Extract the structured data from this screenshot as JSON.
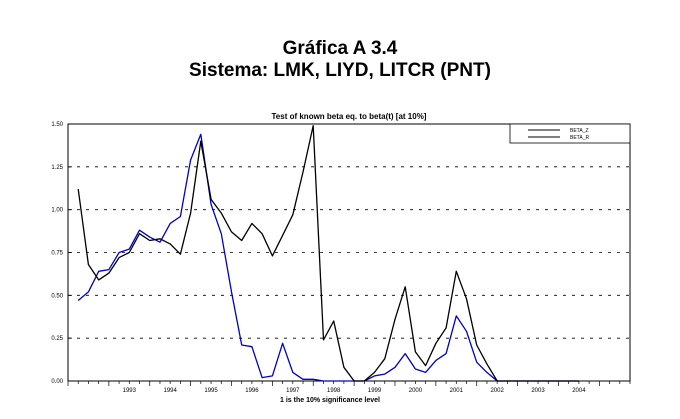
{
  "header": {
    "title": "Gráfica A 3.4",
    "subtitle": "Sistema: LMK, LIYD, LITCR (PNT)"
  },
  "chart_data": {
    "type": "line",
    "title": "Test of known beta eq. to beta(t) [at 10%]",
    "xlabel": "1 is the 10% significance level",
    "ylabel": "",
    "xlim": [
      1992.0,
      2005.75
    ],
    "ylim": [
      0,
      1.5
    ],
    "yticks": [
      "0.00",
      "0.25",
      "0.50",
      "0.75",
      "1.00",
      "1.25",
      "1.50"
    ],
    "ytick_values": [
      0,
      0.25,
      0.5,
      0.75,
      1.0,
      1.25,
      1.5
    ],
    "xticks": [
      "1993",
      "1994",
      "1995",
      "1996",
      "1997",
      "1998",
      "1999",
      "2000",
      "2001",
      "2002",
      "2003",
      "2004"
    ],
    "xtick_values": [
      1993,
      1994,
      1995,
      1996,
      1997,
      1998,
      1999,
      2000,
      2001,
      2002,
      2003,
      2004
    ],
    "grid": "dashed horizontal",
    "legend_position": "top-right",
    "colors": {
      "beta_z": "#000000",
      "beta_r": "#0000cc"
    },
    "x": [
      1992.25,
      1992.5,
      1992.75,
      1993.0,
      1993.25,
      1993.5,
      1993.75,
      1994.0,
      1994.25,
      1994.5,
      1994.75,
      1995.0,
      1995.25,
      1995.5,
      1995.75,
      1996.0,
      1996.25,
      1996.5,
      1996.75,
      1997.0,
      1997.25,
      1997.5,
      1997.75,
      1998.0,
      1998.25,
      1998.5,
      1998.75,
      1999.0,
      1999.25,
      1999.5,
      1999.75,
      2000.0,
      2000.25,
      2000.5,
      2000.75,
      2001.0,
      2001.25,
      2001.5,
      2001.75,
      2002.0,
      2002.25,
      2002.5,
      2002.75,
      2003.0,
      2003.25,
      2003.5,
      2003.75,
      2004.0,
      2004.25,
      2004.5
    ],
    "series": [
      {
        "name": "BETA_Z",
        "values": [
          1.12,
          0.68,
          0.59,
          0.63,
          0.72,
          0.75,
          0.86,
          0.82,
          0.83,
          0.8,
          0.74,
          0.98,
          1.4,
          1.06,
          0.98,
          0.87,
          0.82,
          0.92,
          0.86,
          0.73,
          0.85,
          0.97,
          1.22,
          1.49,
          0.24,
          0.35,
          0.08,
          0.0,
          0.0,
          0.05,
          0.13,
          0.36,
          0.55,
          0.17,
          0.09,
          0.22,
          0.31,
          0.64,
          0.48,
          0.21,
          0.1,
          0.0,
          0.0,
          0.0,
          0.0,
          0.0,
          0.0,
          0.0,
          0.0,
          0.0
        ]
      },
      {
        "name": "BETA_R",
        "values": [
          0.47,
          0.52,
          0.64,
          0.65,
          0.75,
          0.77,
          0.88,
          0.84,
          0.81,
          0.92,
          0.96,
          1.29,
          1.44,
          1.03,
          0.86,
          0.52,
          0.21,
          0.2,
          0.02,
          0.03,
          0.22,
          0.05,
          0.01,
          0.01,
          0.0,
          0.0,
          0.0,
          0.0,
          0.0,
          0.03,
          0.04,
          0.08,
          0.16,
          0.07,
          0.05,
          0.12,
          0.16,
          0.38,
          0.29,
          0.11,
          0.05,
          0.0,
          0.0,
          0.0,
          0.0,
          0.0,
          0.0,
          0.0,
          0.0,
          0.0
        ]
      }
    ]
  }
}
